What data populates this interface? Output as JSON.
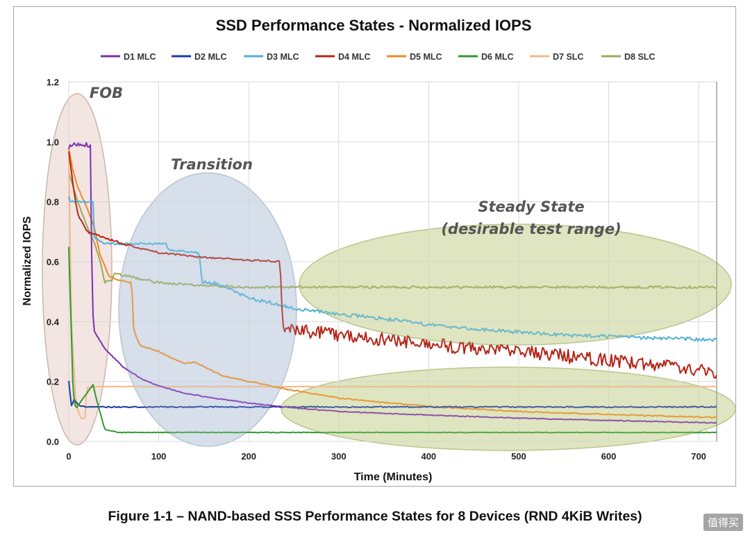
{
  "caption": "Figure 1-1 – NAND-based SSS Performance States for 8 Devices (RND 4KiB Writes)",
  "watermark": "值得买",
  "chart_data": {
    "type": "line",
    "title": "SSD Performance States - Normalized IOPS",
    "xlabel": "Time (Minutes)",
    "ylabel": "Normalized IOPS",
    "xlim": [
      0,
      720
    ],
    "ylim": [
      0,
      1.2
    ],
    "xticks": [
      0,
      100,
      200,
      300,
      400,
      500,
      600,
      700
    ],
    "yticks": [
      0.0,
      0.2,
      0.4,
      0.6,
      0.8,
      1.0,
      1.2
    ],
    "grid": true,
    "legend_position": "top",
    "series": [
      {
        "name": "D1 MLC",
        "color": "#7b2fb0",
        "noise": 0.003,
        "points": [
          [
            0,
            0.97
          ],
          [
            2,
            0.99
          ],
          [
            24,
            0.99
          ],
          [
            25,
            0.75
          ],
          [
            26,
            0.5
          ],
          [
            27,
            0.42
          ],
          [
            28,
            0.37
          ],
          [
            40,
            0.31
          ],
          [
            60,
            0.25
          ],
          [
            80,
            0.21
          ],
          [
            100,
            0.185
          ],
          [
            130,
            0.16
          ],
          [
            160,
            0.145
          ],
          [
            200,
            0.128
          ],
          [
            250,
            0.112
          ],
          [
            300,
            0.1
          ],
          [
            400,
            0.088
          ],
          [
            500,
            0.078
          ],
          [
            600,
            0.07
          ],
          [
            720,
            0.062
          ]
        ]
      },
      {
        "name": "D2 MLC",
        "color": "#1f3a9e",
        "noise": 0.004,
        "points": [
          [
            0,
            0.2
          ],
          [
            3,
            0.12
          ],
          [
            6,
            0.14
          ],
          [
            12,
            0.12
          ],
          [
            20,
            0.115
          ],
          [
            50,
            0.115
          ],
          [
            100,
            0.115
          ],
          [
            200,
            0.115
          ],
          [
            300,
            0.115
          ],
          [
            400,
            0.115
          ],
          [
            500,
            0.115
          ],
          [
            600,
            0.115
          ],
          [
            720,
            0.115
          ]
        ]
      },
      {
        "name": "D3 MLC",
        "color": "#4fb0d8",
        "noise": 0.006,
        "points": [
          [
            0,
            0.82
          ],
          [
            2,
            0.8
          ],
          [
            27,
            0.8
          ],
          [
            28,
            0.68
          ],
          [
            40,
            0.66
          ],
          [
            50,
            0.66
          ],
          [
            108,
            0.66
          ],
          [
            110,
            0.64
          ],
          [
            145,
            0.63
          ],
          [
            148,
            0.53
          ],
          [
            160,
            0.53
          ],
          [
            200,
            0.48
          ],
          [
            250,
            0.445
          ],
          [
            300,
            0.425
          ],
          [
            350,
            0.41
          ],
          [
            400,
            0.39
          ],
          [
            450,
            0.375
          ],
          [
            500,
            0.365
          ],
          [
            550,
            0.355
          ],
          [
            600,
            0.35
          ],
          [
            650,
            0.345
          ],
          [
            720,
            0.34
          ]
        ]
      },
      {
        "name": "D4 MLC",
        "color": "#b32418",
        "noise": 0.006,
        "points": [
          [
            0,
            0.97
          ],
          [
            5,
            0.85
          ],
          [
            10,
            0.76
          ],
          [
            20,
            0.7
          ],
          [
            40,
            0.68
          ],
          [
            60,
            0.66
          ],
          [
            100,
            0.63
          ],
          [
            150,
            0.615
          ],
          [
            200,
            0.605
          ],
          [
            235,
            0.6
          ],
          [
            236,
            0.5
          ],
          [
            238,
            0.38
          ],
          [
            260,
            0.37
          ],
          [
            300,
            0.355
          ],
          [
            350,
            0.34
          ],
          [
            400,
            0.325
          ],
          [
            450,
            0.31
          ],
          [
            500,
            0.3
          ],
          [
            550,
            0.285
          ],
          [
            600,
            0.27
          ],
          [
            650,
            0.255
          ],
          [
            720,
            0.23
          ]
        ]
      },
      {
        "name": "D5 MLC",
        "color": "#ef8a20",
        "noise": 0.004,
        "points": [
          [
            0,
            0.98
          ],
          [
            5,
            0.9
          ],
          [
            10,
            0.85
          ],
          [
            20,
            0.78
          ],
          [
            28,
            0.72
          ],
          [
            35,
            0.62
          ],
          [
            45,
            0.55
          ],
          [
            60,
            0.535
          ],
          [
            70,
            0.53
          ],
          [
            72,
            0.38
          ],
          [
            76,
            0.34
          ],
          [
            80,
            0.32
          ],
          [
            100,
            0.3
          ],
          [
            120,
            0.27
          ],
          [
            130,
            0.26
          ],
          [
            140,
            0.265
          ],
          [
            150,
            0.25
          ],
          [
            170,
            0.22
          ],
          [
            200,
            0.2
          ],
          [
            250,
            0.17
          ],
          [
            300,
            0.145
          ],
          [
            350,
            0.13
          ],
          [
            400,
            0.117
          ],
          [
            500,
            0.1
          ],
          [
            600,
            0.09
          ],
          [
            720,
            0.08
          ]
        ]
      },
      {
        "name": "D6 MLC",
        "color": "#2f9a2f",
        "noise": 0.002,
        "points": [
          [
            0,
            0.65
          ],
          [
            3,
            0.35
          ],
          [
            5,
            0.15
          ],
          [
            8,
            0.11
          ],
          [
            15,
            0.14
          ],
          [
            27,
            0.19
          ],
          [
            30,
            0.15
          ],
          [
            40,
            0.04
          ],
          [
            55,
            0.03
          ],
          [
            100,
            0.03
          ],
          [
            150,
            0.03
          ],
          [
            200,
            0.03
          ],
          [
            300,
            0.03
          ],
          [
            400,
            0.03
          ],
          [
            500,
            0.03
          ],
          [
            600,
            0.03
          ],
          [
            720,
            0.03
          ]
        ]
      },
      {
        "name": "D7 SLC",
        "color": "#f2b888",
        "noise": 0.002,
        "points": [
          [
            0,
            0.95
          ],
          [
            3,
            0.4
          ],
          [
            8,
            0.12
          ],
          [
            14,
            0.075
          ],
          [
            18,
            0.078
          ],
          [
            20,
            0.18
          ],
          [
            30,
            0.183
          ],
          [
            100,
            0.183
          ],
          [
            300,
            0.183
          ],
          [
            500,
            0.183
          ],
          [
            720,
            0.183
          ]
        ]
      },
      {
        "name": "D8 SLC",
        "color": "#9aa85a",
        "noise": 0.004,
        "points": [
          [
            0,
            0.9
          ],
          [
            5,
            0.85
          ],
          [
            10,
            0.8
          ],
          [
            20,
            0.72
          ],
          [
            26,
            0.68
          ],
          [
            30,
            0.65
          ],
          [
            35,
            0.6
          ],
          [
            40,
            0.53
          ],
          [
            48,
            0.54
          ],
          [
            50,
            0.56
          ],
          [
            60,
            0.555
          ],
          [
            100,
            0.53
          ],
          [
            150,
            0.52
          ],
          [
            200,
            0.515
          ],
          [
            300,
            0.515
          ],
          [
            400,
            0.515
          ],
          [
            500,
            0.515
          ],
          [
            600,
            0.515
          ],
          [
            720,
            0.515
          ]
        ]
      }
    ],
    "annotations": [
      {
        "text": "FOB"
      },
      {
        "text": "Transition"
      },
      {
        "text": "Steady State"
      },
      {
        "text": "(desirable test range)"
      }
    ]
  }
}
